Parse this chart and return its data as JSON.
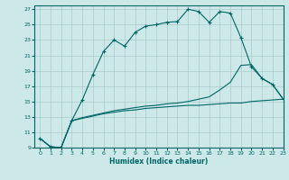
{
  "xlabel": "Humidex (Indice chaleur)",
  "ylabel": "",
  "background_color": "#cce8e8",
  "grid_color": "#aacccc",
  "line_color": "#006666",
  "xlim": [
    -0.5,
    23
  ],
  "ylim": [
    9,
    27.5
  ],
  "yticks": [
    9,
    11,
    13,
    15,
    17,
    19,
    21,
    23,
    25,
    27
  ],
  "xticks": [
    0,
    1,
    2,
    3,
    4,
    5,
    6,
    7,
    8,
    9,
    10,
    11,
    12,
    13,
    14,
    15,
    16,
    17,
    18,
    19,
    20,
    21,
    22,
    23
  ],
  "line1_x": [
    0,
    1,
    2,
    3,
    4,
    5,
    6,
    7,
    8,
    9,
    10,
    11,
    12,
    13,
    14,
    15,
    16,
    17,
    18,
    19,
    20,
    21,
    22,
    23
  ],
  "line1_y": [
    10.2,
    9.1,
    9.0,
    12.5,
    15.2,
    18.5,
    21.5,
    23.0,
    22.2,
    24.0,
    24.8,
    25.0,
    25.3,
    25.4,
    27.0,
    26.7,
    25.3,
    26.7,
    26.5,
    23.3,
    19.5,
    18.0,
    17.2,
    15.3
  ],
  "line2_x": [
    0,
    1,
    2,
    3,
    4,
    5,
    6,
    7,
    8,
    9,
    10,
    11,
    12,
    13,
    14,
    15,
    16,
    17,
    18,
    19,
    20,
    21,
    22,
    23
  ],
  "line2_y": [
    10.2,
    9.1,
    9.0,
    12.5,
    12.8,
    13.1,
    13.4,
    13.6,
    13.8,
    13.9,
    14.1,
    14.2,
    14.3,
    14.4,
    14.5,
    14.5,
    14.6,
    14.7,
    14.8,
    14.8,
    15.0,
    15.1,
    15.2,
    15.3
  ],
  "line3_x": [
    0,
    1,
    2,
    3,
    4,
    5,
    6,
    7,
    8,
    9,
    10,
    11,
    12,
    13,
    14,
    15,
    16,
    17,
    18,
    19,
    20,
    21,
    22,
    23
  ],
  "line3_y": [
    10.2,
    9.1,
    9.0,
    12.5,
    12.9,
    13.2,
    13.5,
    13.8,
    14.0,
    14.2,
    14.4,
    14.5,
    14.7,
    14.8,
    15.0,
    15.3,
    15.6,
    16.5,
    17.5,
    19.7,
    19.8,
    18.0,
    17.2,
    15.3
  ]
}
